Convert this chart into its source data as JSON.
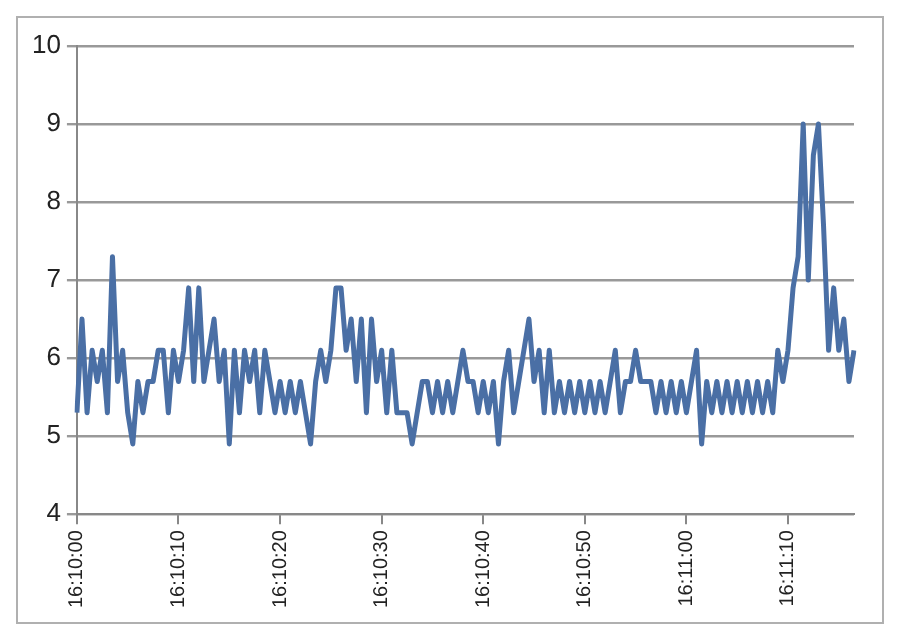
{
  "chart_data": {
    "type": "line",
    "categories": [
      "16:10:00",
      null,
      null,
      null,
      null,
      null,
      null,
      null,
      null,
      null,
      null,
      null,
      null,
      null,
      null,
      null,
      null,
      null,
      null,
      null,
      "16:10:10",
      null,
      null,
      null,
      null,
      null,
      null,
      null,
      null,
      null,
      null,
      null,
      null,
      null,
      null,
      null,
      null,
      null,
      null,
      null,
      "16:10:20",
      null,
      null,
      null,
      null,
      null,
      null,
      null,
      null,
      null,
      null,
      null,
      null,
      null,
      null,
      null,
      null,
      null,
      null,
      null,
      "16:10:30",
      null,
      null,
      null,
      null,
      null,
      null,
      null,
      null,
      null,
      null,
      null,
      null,
      null,
      null,
      null,
      null,
      null,
      null,
      null,
      "16:10:40",
      null,
      null,
      null,
      null,
      null,
      null,
      null,
      null,
      null,
      null,
      null,
      null,
      null,
      null,
      null,
      null,
      null,
      null,
      null,
      "16:10:50",
      null,
      null,
      null,
      null,
      null,
      null,
      null,
      null,
      null,
      null,
      null,
      null,
      null,
      null,
      null,
      null,
      null,
      null,
      null,
      "16:11:00",
      null,
      null,
      null,
      null,
      null,
      null,
      null,
      null,
      null,
      null,
      null,
      null,
      null,
      null,
      null,
      null,
      null,
      null,
      null,
      "16:11:10",
      null,
      null,
      null,
      null,
      null,
      null,
      null,
      null,
      null,
      null,
      null,
      null,
      null
    ],
    "series": [
      {
        "color": "#4a6fa5",
        "values": [
          5.3,
          6.5,
          5.3,
          6.1,
          5.7,
          6.1,
          5.3,
          7.3,
          5.7,
          6.1,
          5.3,
          4.9,
          5.7,
          5.3,
          5.7,
          5.7,
          6.1,
          6.1,
          5.3,
          6.1,
          5.7,
          6.1,
          6.9,
          5.7,
          6.9,
          5.7,
          6.1,
          6.5,
          5.7,
          6.1,
          4.9,
          6.1,
          5.3,
          6.1,
          5.7,
          6.1,
          5.3,
          6.1,
          5.7,
          5.3,
          5.7,
          5.3,
          5.7,
          5.3,
          5.7,
          5.3,
          4.9,
          5.7,
          6.1,
          5.7,
          6.1,
          6.9,
          6.9,
          6.1,
          6.5,
          5.7,
          6.5,
          5.3,
          6.5,
          5.7,
          6.1,
          5.3,
          6.1,
          5.3,
          5.3,
          5.3,
          4.9,
          5.3,
          5.7,
          5.7,
          5.3,
          5.7,
          5.3,
          5.7,
          5.3,
          5.7,
          6.1,
          5.7,
          5.7,
          5.3,
          5.7,
          5.3,
          5.7,
          4.9,
          5.7,
          6.1,
          5.3,
          5.7,
          6.1,
          6.5,
          5.7,
          6.1,
          5.3,
          6.1,
          5.3,
          5.7,
          5.3,
          5.7,
          5.3,
          5.7,
          5.3,
          5.7,
          5.3,
          5.7,
          5.3,
          5.7,
          6.1,
          5.3,
          5.7,
          5.7,
          6.1,
          5.7,
          5.7,
          5.7,
          5.3,
          5.7,
          5.3,
          5.7,
          5.3,
          5.7,
          5.3,
          5.7,
          6.1,
          4.9,
          5.7,
          5.3,
          5.7,
          5.3,
          5.7,
          5.3,
          5.7,
          5.3,
          5.7,
          5.3,
          5.7,
          5.3,
          5.7,
          5.3,
          6.1,
          5.7,
          6.1,
          6.9,
          7.3,
          9.0,
          7.0,
          8.6,
          9.0,
          7.7,
          6.1,
          6.9,
          6.1,
          6.5,
          5.7,
          6.1
        ]
      }
    ],
    "ylim": [
      4,
      10
    ],
    "yticks": [
      4,
      5,
      6,
      7,
      8,
      9,
      10
    ],
    "grid": "y",
    "legend": false,
    "marker": "none",
    "line_style": "solid"
  }
}
